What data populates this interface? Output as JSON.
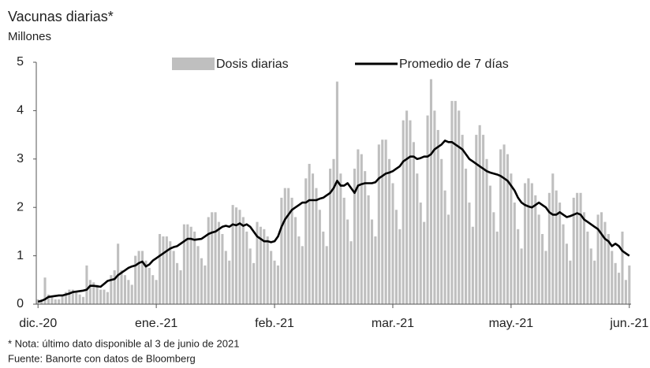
{
  "chart_data": {
    "type": "bar_line",
    "title": "Vacunas diarias*",
    "subtitle": "Millones",
    "notes": [
      "* Nota: último dato disponible al 3 de junio de 2021",
      "Fuente: Banorte con datos de Bloomberg"
    ],
    "legend": "top",
    "ylim": [
      0,
      5
    ],
    "yticks": [
      0,
      1,
      2,
      3,
      4,
      5
    ],
    "categories": [
      "dic.-20",
      null,
      null,
      null,
      null,
      null,
      null,
      null,
      null,
      null,
      null,
      null,
      null,
      null,
      null,
      null,
      null,
      null,
      null,
      null,
      null,
      null,
      null,
      null,
      null,
      null,
      null,
      null,
      null,
      null,
      null,
      null,
      null,
      null,
      "ene.-21",
      null,
      null,
      null,
      null,
      null,
      null,
      null,
      null,
      null,
      null,
      null,
      null,
      null,
      null,
      null,
      null,
      null,
      null,
      null,
      null,
      null,
      null,
      null,
      null,
      null,
      null,
      null,
      null,
      null,
      null,
      null,
      null,
      null,
      "feb.-21",
      null,
      null,
      null,
      null,
      null,
      null,
      null,
      null,
      null,
      null,
      null,
      null,
      null,
      null,
      null,
      null,
      null,
      null,
      null,
      null,
      null,
      null,
      null,
      null,
      null,
      null,
      null,
      null,
      null,
      null,
      null,
      null,
      null,
      "mar.-21",
      null,
      null,
      null,
      null,
      null,
      null,
      null,
      null,
      null,
      null,
      null,
      null,
      null,
      null,
      null,
      null,
      null,
      null,
      null,
      null,
      null,
      null,
      null,
      null,
      null,
      null,
      null,
      null,
      null,
      null,
      null,
      null,
      null,
      "may.-21",
      null,
      null,
      null,
      null,
      null,
      null,
      null,
      null,
      null,
      null,
      null,
      null,
      null,
      null,
      null,
      null,
      null,
      null,
      null,
      null,
      null,
      null,
      null,
      null,
      null,
      null,
      null,
      null,
      null,
      null,
      null,
      null,
      null,
      "jun.-21"
    ],
    "series": [
      {
        "name": "Dosis diarias",
        "type": "bar",
        "color": "#bfbfbf",
        "values": [
          0.1,
          0.1,
          0.55,
          0.2,
          0.15,
          0.1,
          0.1,
          0.2,
          0.25,
          0.3,
          0.3,
          0.25,
          0.2,
          0.15,
          0.8,
          0.5,
          0.45,
          0.4,
          0.3,
          0.3,
          0.25,
          0.6,
          0.7,
          1.25,
          0.7,
          0.6,
          0.5,
          0.4,
          1.0,
          1.1,
          1.1,
          0.9,
          0.75,
          0.6,
          0.5,
          1.45,
          1.4,
          1.4,
          1.3,
          1.1,
          0.85,
          0.7,
          1.65,
          1.65,
          1.6,
          1.5,
          1.2,
          0.95,
          0.8,
          1.8,
          1.9,
          1.9,
          1.7,
          1.45,
          1.1,
          0.9,
          2.05,
          2.0,
          1.95,
          1.8,
          1.5,
          1.15,
          0.85,
          1.7,
          1.6,
          1.55,
          1.4,
          1.1,
          0.9,
          0.8,
          2.2,
          2.4,
          2.4,
          2.2,
          1.8,
          1.4,
          1.2,
          2.6,
          2.9,
          2.7,
          2.4,
          1.95,
          1.5,
          1.2,
          2.8,
          3.0,
          4.6,
          2.7,
          2.2,
          1.75,
          1.3,
          2.8,
          3.2,
          3.1,
          2.75,
          2.25,
          1.75,
          1.4,
          3.3,
          3.4,
          3.4,
          3.0,
          2.5,
          1.95,
          1.55,
          3.8,
          4.0,
          3.8,
          3.35,
          2.7,
          2.1,
          1.7,
          3.9,
          4.65,
          4.0,
          3.6,
          3.0,
          2.35,
          1.85,
          4.2,
          4.2,
          4.0,
          3.5,
          2.8,
          2.1,
          1.6,
          3.5,
          3.7,
          3.5,
          3.0,
          2.45,
          1.9,
          1.5,
          3.2,
          3.3,
          3.1,
          2.7,
          2.1,
          1.55,
          1.15,
          2.5,
          2.6,
          2.5,
          2.25,
          1.85,
          1.45,
          1.1,
          2.3,
          2.7,
          2.35,
          2.1,
          1.65,
          1.25,
          0.9,
          2.2,
          2.3,
          2.3,
          1.9,
          1.5,
          1.15,
          0.9,
          1.85,
          1.9,
          1.7,
          1.45,
          1.1,
          0.85,
          0.65,
          1.5,
          0.5,
          0.8
        ]
      },
      {
        "name": "Promedio de 7 días",
        "type": "line",
        "color": "#000000",
        "values": [
          0.05,
          0.07,
          0.1,
          0.15,
          0.16,
          0.17,
          0.18,
          0.18,
          0.2,
          0.22,
          0.25,
          0.26,
          0.27,
          0.28,
          0.3,
          0.38,
          0.38,
          0.37,
          0.36,
          0.42,
          0.48,
          0.5,
          0.52,
          0.6,
          0.65,
          0.7,
          0.75,
          0.78,
          0.8,
          0.85,
          0.88,
          0.78,
          0.82,
          0.9,
          0.95,
          1.0,
          1.05,
          1.1,
          1.15,
          1.18,
          1.2,
          1.25,
          1.3,
          1.35,
          1.35,
          1.33,
          1.34,
          1.35,
          1.4,
          1.45,
          1.48,
          1.5,
          1.55,
          1.6,
          1.62,
          1.6,
          1.65,
          1.63,
          1.67,
          1.62,
          1.65,
          1.6,
          1.5,
          1.4,
          1.35,
          1.3,
          1.3,
          1.28,
          1.3,
          1.4,
          1.6,
          1.75,
          1.85,
          1.95,
          2.0,
          2.05,
          2.1,
          2.1,
          2.15,
          2.15,
          2.15,
          2.18,
          2.2,
          2.25,
          2.3,
          2.4,
          2.55,
          2.45,
          2.45,
          2.5,
          2.4,
          2.3,
          2.45,
          2.48,
          2.5,
          2.5,
          2.5,
          2.52,
          2.6,
          2.65,
          2.7,
          2.72,
          2.75,
          2.8,
          2.85,
          2.95,
          3.0,
          3.05,
          3.05,
          3.0,
          3.02,
          3.05,
          3.05,
          3.1,
          3.2,
          3.25,
          3.3,
          3.38,
          3.35,
          3.35,
          3.3,
          3.25,
          3.2,
          3.1,
          3.0,
          2.95,
          2.9,
          2.85,
          2.8,
          2.75,
          2.72,
          2.7,
          2.68,
          2.65,
          2.6,
          2.55,
          2.45,
          2.35,
          2.2,
          2.1,
          2.05,
          2.02,
          2.0,
          2.05,
          2.1,
          2.05,
          2.0,
          1.9,
          1.85,
          1.85,
          1.9,
          1.85,
          1.8,
          1.82,
          1.85,
          1.88,
          1.85,
          1.75,
          1.7,
          1.65,
          1.6,
          1.55,
          1.45,
          1.35,
          1.3,
          1.2,
          1.25,
          1.2,
          1.1,
          1.05,
          1.0
        ]
      }
    ]
  }
}
